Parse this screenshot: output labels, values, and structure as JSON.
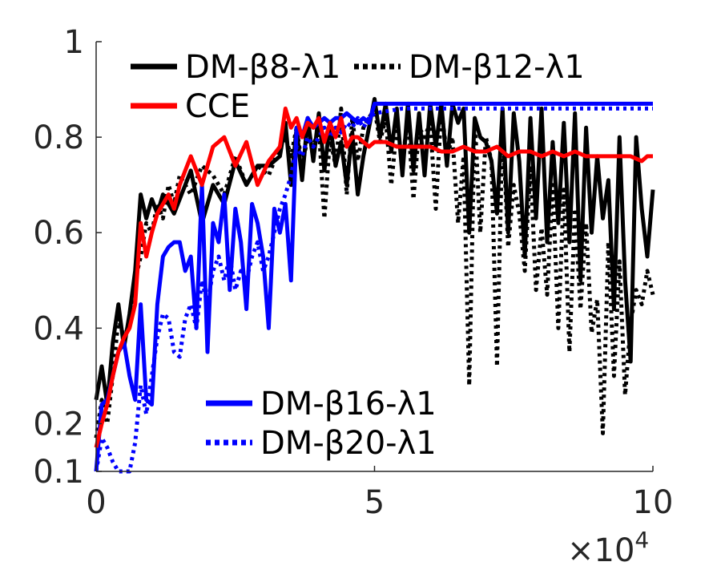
{
  "chart_data": {
    "type": "line",
    "title": "",
    "xlabel": "",
    "ylabel": "",
    "xlim": [
      0,
      100000
    ],
    "ylim": [
      0.1,
      1
    ],
    "x_ticks": [
      {
        "value": 0,
        "label": "0"
      },
      {
        "value": 50000,
        "label": "5"
      },
      {
        "value": 100000,
        "label": "10"
      }
    ],
    "y_ticks": [
      {
        "value": 0.1,
        "label": "0.1"
      },
      {
        "value": 0.2,
        "label": "0.2"
      },
      {
        "value": 0.4,
        "label": "0.4"
      },
      {
        "value": 0.6,
        "label": "0.6"
      },
      {
        "value": 0.8,
        "label": "0.8"
      },
      {
        "value": 1.0,
        "label": "1"
      }
    ],
    "x_multiplier": {
      "base": "×10",
      "exponent": "4"
    },
    "grid": false,
    "legend": [
      {
        "position": "top-left",
        "entries": [
          "DM-β8-λ1",
          "DM-β12-λ1",
          "CCE"
        ]
      },
      {
        "position": "bottom-center",
        "entries": [
          "DM-β16-λ1",
          "DM-β20-λ1"
        ]
      }
    ],
    "series": [
      {
        "name": "DM-β8-λ1",
        "color": "#000000",
        "dash": "solid",
        "x": [
          0,
          1000,
          2000,
          3000,
          4000,
          5000,
          6000,
          7000,
          8000,
          9000,
          10000,
          11000,
          12000,
          13000,
          14000,
          15000,
          17000,
          19000,
          21000,
          23000,
          25000,
          27000,
          29000,
          31000,
          33000,
          34000,
          35000,
          36000,
          37000,
          38000,
          39000,
          40000,
          41000,
          42000,
          43000,
          44000,
          45000,
          46000,
          47000,
          48000,
          49000,
          50000,
          51000,
          52000,
          53000,
          54000,
          55000,
          56000,
          57000,
          58000,
          59000,
          60000,
          61000,
          62000,
          63000,
          64000,
          65000,
          66000,
          67000,
          68000,
          69000,
          70000,
          71000,
          72000,
          73000,
          74000,
          75000,
          76000,
          77000,
          78000,
          79000,
          80000,
          81000,
          82000,
          83000,
          84000,
          85000,
          86000,
          87000,
          88000,
          89000,
          90000,
          91000,
          92000,
          93000,
          94000,
          95000,
          96000,
          97000,
          98000,
          99000,
          100000
        ],
        "y": [
          0.25,
          0.32,
          0.24,
          0.37,
          0.45,
          0.36,
          0.43,
          0.52,
          0.68,
          0.63,
          0.67,
          0.64,
          0.68,
          0.66,
          0.64,
          0.67,
          0.73,
          0.62,
          0.7,
          0.66,
          0.75,
          0.7,
          0.74,
          0.74,
          0.76,
          0.83,
          0.7,
          0.82,
          0.71,
          0.84,
          0.75,
          0.85,
          0.73,
          0.83,
          0.74,
          0.79,
          0.7,
          0.81,
          0.68,
          0.76,
          0.82,
          0.88,
          0.8,
          0.87,
          0.77,
          0.86,
          0.72,
          0.87,
          0.73,
          0.85,
          0.72,
          0.87,
          0.78,
          0.87,
          0.74,
          0.87,
          0.83,
          0.86,
          0.6,
          0.84,
          0.8,
          0.79,
          0.75,
          0.64,
          0.86,
          0.6,
          0.85,
          0.75,
          0.55,
          0.84,
          0.63,
          0.86,
          0.58,
          0.79,
          0.62,
          0.83,
          0.58,
          0.85,
          0.5,
          0.82,
          0.6,
          0.76,
          0.63,
          0.71,
          0.44,
          0.8,
          0.5,
          0.33,
          0.8,
          0.65,
          0.55,
          0.69
        ]
      },
      {
        "name": "DM-β12-λ1",
        "color": "#000000",
        "dash": "dotted",
        "x": [
          0,
          1000,
          2000,
          3000,
          4000,
          5000,
          6000,
          7000,
          8000,
          9000,
          10000,
          11000,
          12000,
          13000,
          14000,
          15000,
          17000,
          19000,
          21000,
          23000,
          25000,
          27000,
          29000,
          31000,
          33000,
          34000,
          35000,
          36000,
          37000,
          38000,
          39000,
          40000,
          41000,
          42000,
          43000,
          44000,
          45000,
          46000,
          47000,
          48000,
          49000,
          50000,
          51000,
          52000,
          53000,
          54000,
          55000,
          56000,
          57000,
          58000,
          59000,
          60000,
          61000,
          62000,
          63000,
          64000,
          65000,
          66000,
          67000,
          68000,
          69000,
          70000,
          71000,
          72000,
          73000,
          74000,
          75000,
          76000,
          77000,
          78000,
          79000,
          80000,
          81000,
          82000,
          83000,
          84000,
          85000,
          86000,
          87000,
          88000,
          89000,
          90000,
          91000,
          92000,
          93000,
          94000,
          95000,
          96000,
          97000,
          98000,
          99000,
          100000
        ],
        "y": [
          0.17,
          0.25,
          0.2,
          0.3,
          0.42,
          0.38,
          0.41,
          0.5,
          0.55,
          0.62,
          0.6,
          0.66,
          0.63,
          0.7,
          0.66,
          0.72,
          0.68,
          0.74,
          0.72,
          0.68,
          0.76,
          0.7,
          0.74,
          0.72,
          0.78,
          0.8,
          0.76,
          0.82,
          0.74,
          0.8,
          0.78,
          0.82,
          0.63,
          0.8,
          0.74,
          0.86,
          0.68,
          0.84,
          0.75,
          0.82,
          0.84,
          0.86,
          0.79,
          0.84,
          0.7,
          0.82,
          0.75,
          0.84,
          0.67,
          0.82,
          0.8,
          0.83,
          0.65,
          0.86,
          0.76,
          0.8,
          0.62,
          0.76,
          0.28,
          0.84,
          0.6,
          0.8,
          0.75,
          0.32,
          0.83,
          0.57,
          0.7,
          0.64,
          0.52,
          0.74,
          0.48,
          0.61,
          0.47,
          0.7,
          0.4,
          0.69,
          0.35,
          0.65,
          0.44,
          0.62,
          0.39,
          0.46,
          0.18,
          0.58,
          0.3,
          0.54,
          0.26,
          0.41,
          0.48,
          0.45,
          0.52,
          0.47
        ]
      },
      {
        "name": "CCE",
        "color": "#ff0000",
        "dash": "solid",
        "x": [
          0,
          1000,
          2000,
          3000,
          4000,
          5000,
          6000,
          7000,
          8000,
          9000,
          10000,
          11000,
          12000,
          13000,
          14000,
          15000,
          17000,
          19000,
          21000,
          23000,
          25000,
          27000,
          29000,
          31000,
          33000,
          34000,
          35000,
          36000,
          37000,
          38000,
          39000,
          40000,
          41000,
          42000,
          43000,
          44000,
          45000,
          46000,
          47000,
          48000,
          49000,
          50000,
          52000,
          54000,
          56000,
          58000,
          60000,
          62000,
          64000,
          66000,
          68000,
          70000,
          72000,
          74000,
          76000,
          78000,
          80000,
          82000,
          84000,
          86000,
          88000,
          90000,
          92000,
          94000,
          96000,
          98000,
          99000,
          100000
        ],
        "y": [
          0.15,
          0.2,
          0.24,
          0.3,
          0.35,
          0.38,
          0.4,
          0.45,
          0.62,
          0.55,
          0.6,
          0.64,
          0.66,
          0.68,
          0.65,
          0.7,
          0.76,
          0.7,
          0.78,
          0.8,
          0.74,
          0.79,
          0.7,
          0.75,
          0.78,
          0.86,
          0.82,
          0.84,
          0.8,
          0.83,
          0.82,
          0.84,
          0.79,
          0.83,
          0.8,
          0.84,
          0.78,
          0.8,
          0.8,
          0.79,
          0.78,
          0.79,
          0.79,
          0.78,
          0.78,
          0.78,
          0.78,
          0.77,
          0.77,
          0.78,
          0.77,
          0.77,
          0.78,
          0.76,
          0.77,
          0.77,
          0.76,
          0.77,
          0.76,
          0.77,
          0.76,
          0.76,
          0.76,
          0.76,
          0.76,
          0.75,
          0.76,
          0.76
        ]
      },
      {
        "name": "DM-β16-λ1",
        "color": "#0000ff",
        "dash": "solid",
        "x": [
          0,
          1000,
          2000,
          3000,
          4000,
          5000,
          6000,
          7000,
          8000,
          9000,
          10000,
          11000,
          12000,
          13000,
          14000,
          15000,
          16000,
          17000,
          18000,
          19000,
          20000,
          21000,
          22000,
          23000,
          24000,
          25000,
          26000,
          27000,
          28000,
          29000,
          30000,
          31000,
          32000,
          33000,
          34000,
          35000,
          36000,
          37000,
          38000,
          39000,
          40000,
          41000,
          42000,
          43000,
          44000,
          45000,
          46000,
          47000,
          48000,
          49000,
          50000,
          55000,
          60000,
          65000,
          70000,
          75000,
          80000,
          85000,
          90000,
          95000,
          100000
        ],
        "y": [
          0.1,
          0.24,
          0.25,
          0.3,
          0.35,
          0.37,
          0.3,
          0.25,
          0.45,
          0.25,
          0.24,
          0.45,
          0.55,
          0.57,
          0.58,
          0.58,
          0.52,
          0.55,
          0.4,
          0.7,
          0.35,
          0.62,
          0.58,
          0.68,
          0.48,
          0.65,
          0.58,
          0.44,
          0.66,
          0.62,
          0.55,
          0.4,
          0.65,
          0.6,
          0.66,
          0.5,
          0.82,
          0.8,
          0.84,
          0.82,
          0.83,
          0.84,
          0.83,
          0.84,
          0.84,
          0.85,
          0.84,
          0.83,
          0.84,
          0.83,
          0.87,
          0.87,
          0.87,
          0.87,
          0.87,
          0.87,
          0.87,
          0.87,
          0.87,
          0.87,
          0.87
        ]
      },
      {
        "name": "DM-β20-λ1",
        "color": "#0000ff",
        "dash": "dotted",
        "x": [
          0,
          1000,
          2000,
          3000,
          4000,
          5000,
          6000,
          7000,
          8000,
          9000,
          10000,
          11000,
          12000,
          13000,
          14000,
          15000,
          16000,
          17000,
          18000,
          19000,
          20000,
          21000,
          22000,
          23000,
          24000,
          25000,
          26000,
          27000,
          28000,
          29000,
          30000,
          31000,
          32000,
          33000,
          34000,
          35000,
          36000,
          37000,
          38000,
          39000,
          40000,
          41000,
          42000,
          43000,
          44000,
          45000,
          46000,
          47000,
          48000,
          49000,
          50000,
          55000,
          60000,
          65000,
          70000,
          75000,
          80000,
          85000,
          90000,
          95000,
          100000
        ],
        "y": [
          0.1,
          0.17,
          0.15,
          0.12,
          0.1,
          0.1,
          0.1,
          0.16,
          0.28,
          0.22,
          0.3,
          0.38,
          0.43,
          0.42,
          0.35,
          0.34,
          0.42,
          0.45,
          0.4,
          0.5,
          0.45,
          0.52,
          0.55,
          0.5,
          0.55,
          0.48,
          0.52,
          0.5,
          0.55,
          0.58,
          0.52,
          0.55,
          0.6,
          0.65,
          0.68,
          0.72,
          0.78,
          0.76,
          0.8,
          0.78,
          0.8,
          0.82,
          0.8,
          0.82,
          0.81,
          0.83,
          0.82,
          0.84,
          0.82,
          0.84,
          0.85,
          0.86,
          0.86,
          0.86,
          0.86,
          0.86,
          0.86,
          0.86,
          0.86,
          0.86,
          0.86
        ]
      }
    ]
  }
}
